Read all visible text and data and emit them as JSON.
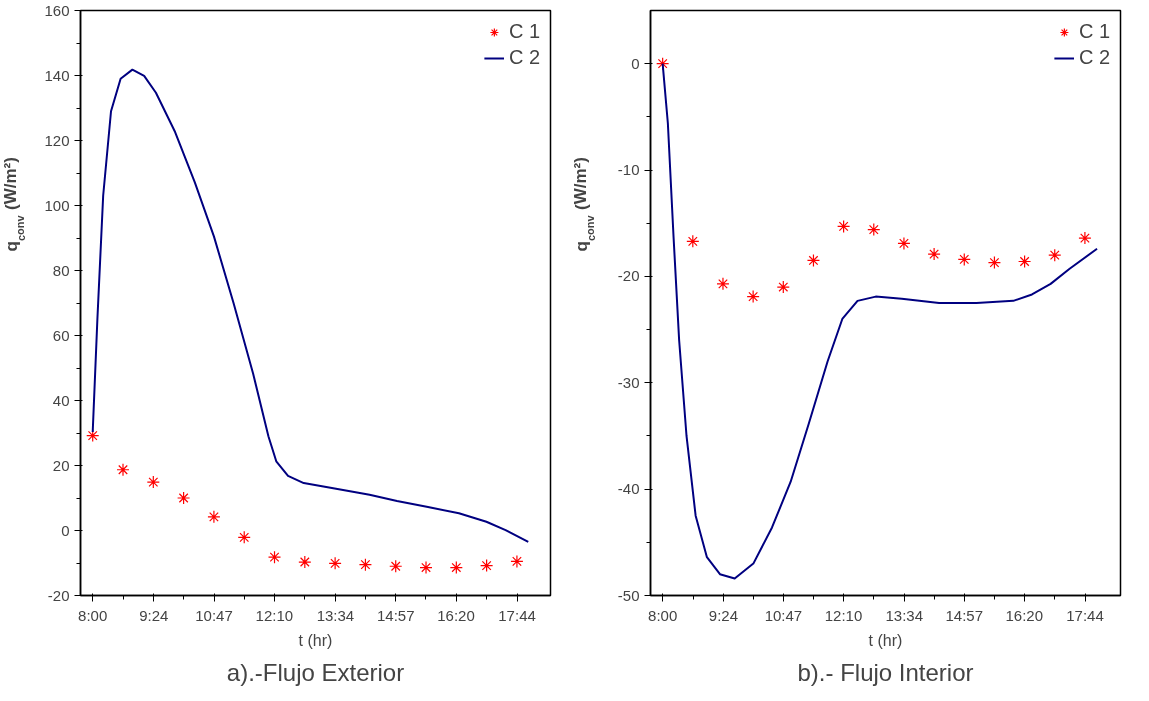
{
  "chart_data": [
    {
      "type": "line",
      "title": "a).-Flujo Exterior",
      "xlabel": "t (hr)",
      "ylabel": "q$_{conv}$ (W/m²)",
      "xlim": [
        7.72,
        18.5
      ],
      "ylim": [
        -20,
        160
      ],
      "xticks": [
        {
          "value": 8,
          "label": "8:00"
        },
        {
          "value": 9.4,
          "label": "9:24"
        },
        {
          "value": 10.783,
          "label": "10:47"
        },
        {
          "value": 12.167,
          "label": "12:10"
        },
        {
          "value": 13.567,
          "label": "13:34"
        },
        {
          "value": 14.95,
          "label": "14:57"
        },
        {
          "value": 16.333,
          "label": "16:20"
        },
        {
          "value": 17.733,
          "label": "17:44"
        }
      ],
      "yticks": [
        -20,
        0,
        20,
        40,
        60,
        80,
        100,
        120,
        140,
        160
      ],
      "grid": false,
      "legend": "top right",
      "series": [
        {
          "name": "C 1",
          "type": "scatter",
          "marker": "cross",
          "color": "#ff0000",
          "x": [
            8,
            8.695,
            9.39,
            10.085,
            10.78,
            11.475,
            12.17,
            12.865,
            13.56,
            14.255,
            14.95,
            15.645,
            16.34,
            17.035,
            17.73
          ],
          "values": [
            29.2,
            18.7,
            14.9,
            10,
            4.2,
            -2.1,
            -8.2,
            -9.7,
            -10.1,
            -10.5,
            -11,
            -11.4,
            -11.4,
            -10.8,
            -9.5
          ]
        },
        {
          "name": "C 2",
          "type": "line",
          "line_style": "solid",
          "color": "#000080",
          "x": [
            8,
            8.107,
            8.24,
            8.42,
            8.64,
            8.91,
            9.18,
            9.45,
            9.89,
            10.34,
            10.78,
            11.23,
            11.68,
            12.03,
            12.21,
            12.48,
            12.84,
            13.55,
            14.35,
            14.98,
            15.69,
            16.4,
            17.03,
            17.47,
            17.99
          ],
          "values": [
            30.3,
            64.9,
            103,
            129,
            139,
            141.8,
            139.9,
            134.7,
            122.6,
            107.2,
            90.5,
            70,
            48.2,
            29,
            21.3,
            16.8,
            14.6,
            12.9,
            11,
            9.1,
            7.2,
            5.3,
            2.7,
            0.1,
            -3.5
          ]
        }
      ]
    },
    {
      "type": "line",
      "title": "b).- Flujo Interior",
      "xlabel": "t (hr)",
      "ylabel": "q$_{conv}$ (W/m²)",
      "xlim": [
        7.72,
        18.55
      ],
      "ylim": [
        -50,
        5
      ],
      "xticks": [
        {
          "value": 8,
          "label": "8:00"
        },
        {
          "value": 9.4,
          "label": "9:24"
        },
        {
          "value": 10.783,
          "label": "10:47"
        },
        {
          "value": 12.167,
          "label": "12:10"
        },
        {
          "value": 13.567,
          "label": "13:34"
        },
        {
          "value": 14.95,
          "label": "14:57"
        },
        {
          "value": 16.333,
          "label": "16:20"
        },
        {
          "value": 17.733,
          "label": "17:44"
        }
      ],
      "yticks": [
        -50,
        -40,
        -30,
        -20,
        -10,
        0
      ],
      "grid": false,
      "legend": "top right",
      "series": [
        {
          "name": "C 1",
          "type": "scatter",
          "marker": "cross",
          "color": "#ff0000",
          "x": [
            8,
            8.695,
            9.39,
            10.085,
            10.78,
            11.475,
            12.17,
            12.865,
            13.56,
            14.255,
            14.95,
            15.645,
            16.34,
            17.035,
            17.73
          ],
          "values": [
            0,
            -16.7,
            -20.7,
            -21.9,
            -21,
            -18.5,
            -15.3,
            -15.6,
            -16.9,
            -17.9,
            -18.4,
            -18.7,
            -18.6,
            -18,
            -16.4
          ]
        },
        {
          "name": "C 2",
          "type": "line",
          "line_style": "solid",
          "color": "#000080",
          "x": [
            8,
            8.12,
            8.25,
            8.38,
            8.55,
            8.76,
            9.02,
            9.32,
            9.66,
            10.09,
            10.52,
            10.95,
            11.37,
            11.8,
            12.14,
            12.49,
            12.91,
            13.51,
            14.37,
            15.23,
            16.08,
            16.51,
            16.94,
            17.37,
            18.01
          ],
          "values": [
            0,
            -5.6,
            -16.2,
            -26,
            -35,
            -42.5,
            -46.4,
            -48,
            -48.4,
            -47,
            -43.6,
            -39.3,
            -33.8,
            -28,
            -24,
            -22.3,
            -21.9,
            -22.1,
            -22.5,
            -22.5,
            -22.3,
            -21.7,
            -20.7,
            -19.3,
            -17.4
          ]
        }
      ]
    }
  ]
}
